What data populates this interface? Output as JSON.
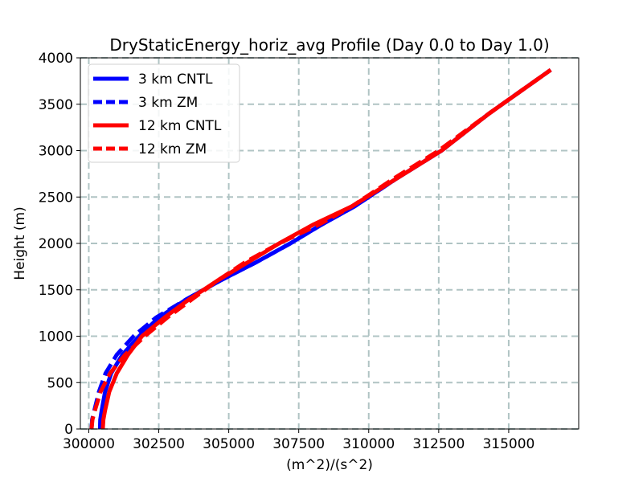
{
  "chart_data": {
    "type": "line",
    "title": "DryStaticEnergy_horiz_avg Profile (Day 0.0 to Day 1.0)",
    "xlabel": "(m^2)/(s^2)",
    "ylabel": "Height (m)",
    "xlim": [
      299700,
      317500
    ],
    "ylim": [
      0,
      4000
    ],
    "xticks": [
      300000,
      302500,
      305000,
      307500,
      310000,
      312500,
      315000
    ],
    "yticks": [
      0,
      500,
      1000,
      1500,
      2000,
      2500,
      3000,
      3500,
      4000
    ],
    "grid": true,
    "legend_position": "upper-left",
    "series": [
      {
        "name": "3 km CNTL",
        "color": "#0000ff",
        "dash": "solid",
        "x": [
          300400,
          300410,
          300460,
          300580,
          300800,
          301200,
          301800,
          302500,
          303500,
          304700,
          306000,
          307200,
          308300,
          309500,
          311000,
          312600,
          314300,
          316500
        ],
        "y": [
          0,
          100,
          200,
          400,
          600,
          800,
          1000,
          1200,
          1400,
          1600,
          1800,
          2000,
          2200,
          2400,
          2700,
          3000,
          3400,
          3870
        ]
      },
      {
        "name": "3 km ZM",
        "color": "#0000ff",
        "dash": "dashed",
        "x": [
          300100,
          300120,
          300200,
          300360,
          300600,
          301000,
          301600,
          302400,
          303500,
          304700,
          306000,
          307200,
          308300,
          309500,
          311000,
          312600,
          314300,
          316500
        ],
        "y": [
          0,
          100,
          200,
          400,
          600,
          800,
          1000,
          1200,
          1400,
          1600,
          1800,
          2000,
          2200,
          2400,
          2700,
          3000,
          3400,
          3870
        ]
      },
      {
        "name": "12 km CNTL",
        "color": "#ff0000",
        "dash": "solid",
        "x": [
          300500,
          300520,
          300580,
          300730,
          301000,
          301400,
          301900,
          302700,
          303600,
          304600,
          305700,
          306800,
          308000,
          309400,
          311000,
          312600,
          314300,
          316500
        ],
        "y": [
          0,
          100,
          200,
          400,
          600,
          800,
          1000,
          1200,
          1400,
          1600,
          1800,
          2000,
          2200,
          2400,
          2700,
          3000,
          3400,
          3870
        ]
      },
      {
        "name": "12 km ZM",
        "color": "#ff0000",
        "dash": "dashed",
        "x": [
          300100,
          300130,
          300220,
          300420,
          300760,
          301300,
          302000,
          302800,
          303700,
          304600,
          305600,
          306800,
          308200,
          309400,
          310900,
          312500,
          314300,
          316500
        ],
        "y": [
          0,
          100,
          200,
          400,
          600,
          800,
          1000,
          1200,
          1400,
          1600,
          1800,
          2000,
          2200,
          2400,
          2700,
          3000,
          3400,
          3870
        ]
      }
    ]
  }
}
